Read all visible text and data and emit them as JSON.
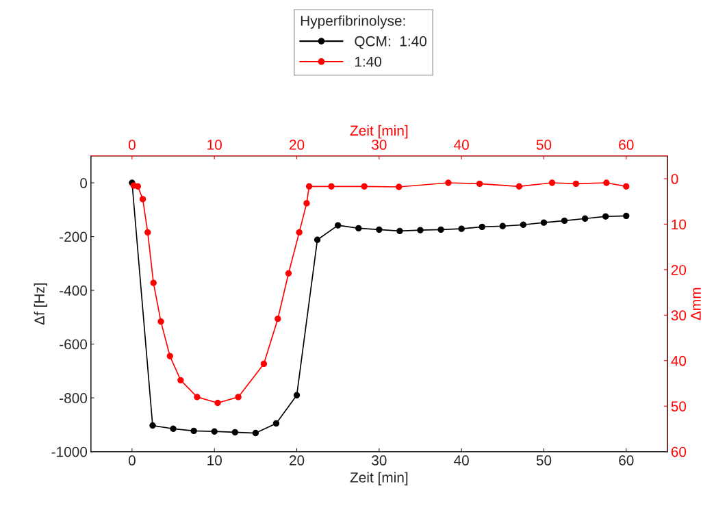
{
  "chart_data": {
    "type": "line",
    "xlabel": "Zeit [min]",
    "ylabel": "Δf [Hz]",
    "y2label": "Δmm",
    "x2label": "Zeit [min]",
    "legend_title": "Hyperfibrinolyse:",
    "legend": "top",
    "marker": "circle",
    "grid": false,
    "xlim": [
      -5,
      65
    ],
    "xticks": [
      0,
      10,
      20,
      30,
      40,
      50,
      60
    ],
    "x2lim": [
      -5,
      65
    ],
    "x2ticks": [
      0,
      10,
      20,
      30,
      40,
      50,
      60
    ],
    "ylim": [
      -1000,
      100
    ],
    "yticks": [
      -1000,
      -800,
      -600,
      -400,
      -200,
      0
    ],
    "y2lim": [
      60,
      -5
    ],
    "y2ticks": [
      60,
      50,
      40,
      30,
      20,
      10,
      0
    ],
    "series": [
      {
        "name": "QCM:  1:40",
        "color": "#000000",
        "x": [
          0,
          2.5,
          5,
          7.5,
          10,
          12.5,
          15,
          17.5,
          20,
          22.5,
          25,
          27.5,
          30,
          32.5,
          35,
          37.5,
          40,
          42.5,
          45,
          47.5,
          50,
          52.5,
          55,
          57.5,
          60
        ],
        "values": [
          0,
          -903,
          -915,
          -923,
          -925,
          -928,
          -931,
          -895,
          -790,
          -212,
          -158,
          -169,
          -174,
          -179,
          -176,
          -174,
          -171,
          -164,
          -161,
          -156,
          -148,
          -141,
          -133,
          -125,
          -123
        ]
      },
      {
        "name": "1:40",
        "color": "#ff0000",
        "axis": "y2",
        "x": [
          0.2,
          0.7,
          1.3,
          1.9,
          2.6,
          3.5,
          4.6,
          5.9,
          7.9,
          10.4,
          12.9,
          16,
          17.7,
          19,
          20.3,
          21.2,
          21.5,
          24.2,
          28.2,
          32.4,
          38.4,
          42.2,
          47,
          51,
          53.9,
          57.6,
          60
        ],
        "values": [
          1.5,
          1.7,
          4.5,
          11.8,
          22.9,
          31.4,
          39,
          44.3,
          48,
          49.3,
          48,
          40.7,
          30.8,
          20.8,
          11.8,
          5.4,
          1.7,
          1.7,
          1.7,
          1.8,
          0.9,
          1.1,
          1.7,
          0.9,
          1.1,
          0.9,
          1.7
        ]
      }
    ]
  }
}
